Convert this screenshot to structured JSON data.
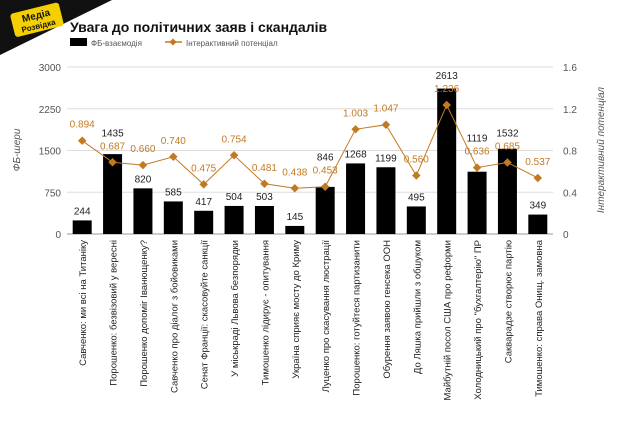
{
  "logo": {
    "text_line1": "Медіа",
    "text_line2": "Розвідка"
  },
  "chart_data": {
    "type": "bar+line",
    "title": "Увага до політичних заяв і скандалів",
    "legend_position": "top-left",
    "grid": true,
    "categories": [
      "Савченко: ми всі на Титаніку",
      "Порошенко: безвізовий у вересні",
      "Порошенко допоміг Іванющенку?",
      "Савченко про діалог з бойовиками",
      "Сенат Франції: скасовуйте санкції",
      "У міськраді Львова безпорядки",
      "Тимошенко лідирує - опитування",
      "Україна сприяє мосту до Криму",
      "Луценко про скасування люстрації",
      "Порошенко: готуйтеся партизанити",
      "Обурення заявою генсека ООН",
      "До Ляшка прийшли з обшуком",
      "Майбутній посол США про реформи",
      "Холодницький про \"бухгалтерію\" ПР",
      "Сакварадзе створює партію",
      "Тимошенко: справа Онищ. замовна"
    ],
    "series": [
      {
        "name": "ФБ-взаємодія",
        "type": "bar",
        "axis": "left",
        "color": "#000000",
        "values": [
          244,
          1435,
          820,
          585,
          417,
          504,
          503,
          145,
          846,
          1268,
          1199,
          495,
          2613,
          1119,
          1532,
          349
        ]
      },
      {
        "name": "Інтерактивний потенціал",
        "type": "line",
        "axis": "right",
        "color": "#c27a22",
        "values": [
          0.894,
          0.687,
          0.66,
          0.74,
          0.475,
          0.754,
          0.481,
          0.438,
          0.453,
          1.003,
          1.047,
          0.56,
          1.236,
          0.636,
          0.685,
          0.537
        ]
      }
    ],
    "left_axis": {
      "label": "ФБ-шери",
      "range": [
        0,
        3000
      ],
      "ticks": [
        "0",
        "750",
        "1500",
        "2250",
        "3000"
      ]
    },
    "right_axis": {
      "label": "Інтерактивний потенціал",
      "range": [
        0,
        1.6
      ],
      "ticks": [
        "0",
        "0.4",
        "0.8",
        "1.2",
        "1.6"
      ]
    }
  }
}
